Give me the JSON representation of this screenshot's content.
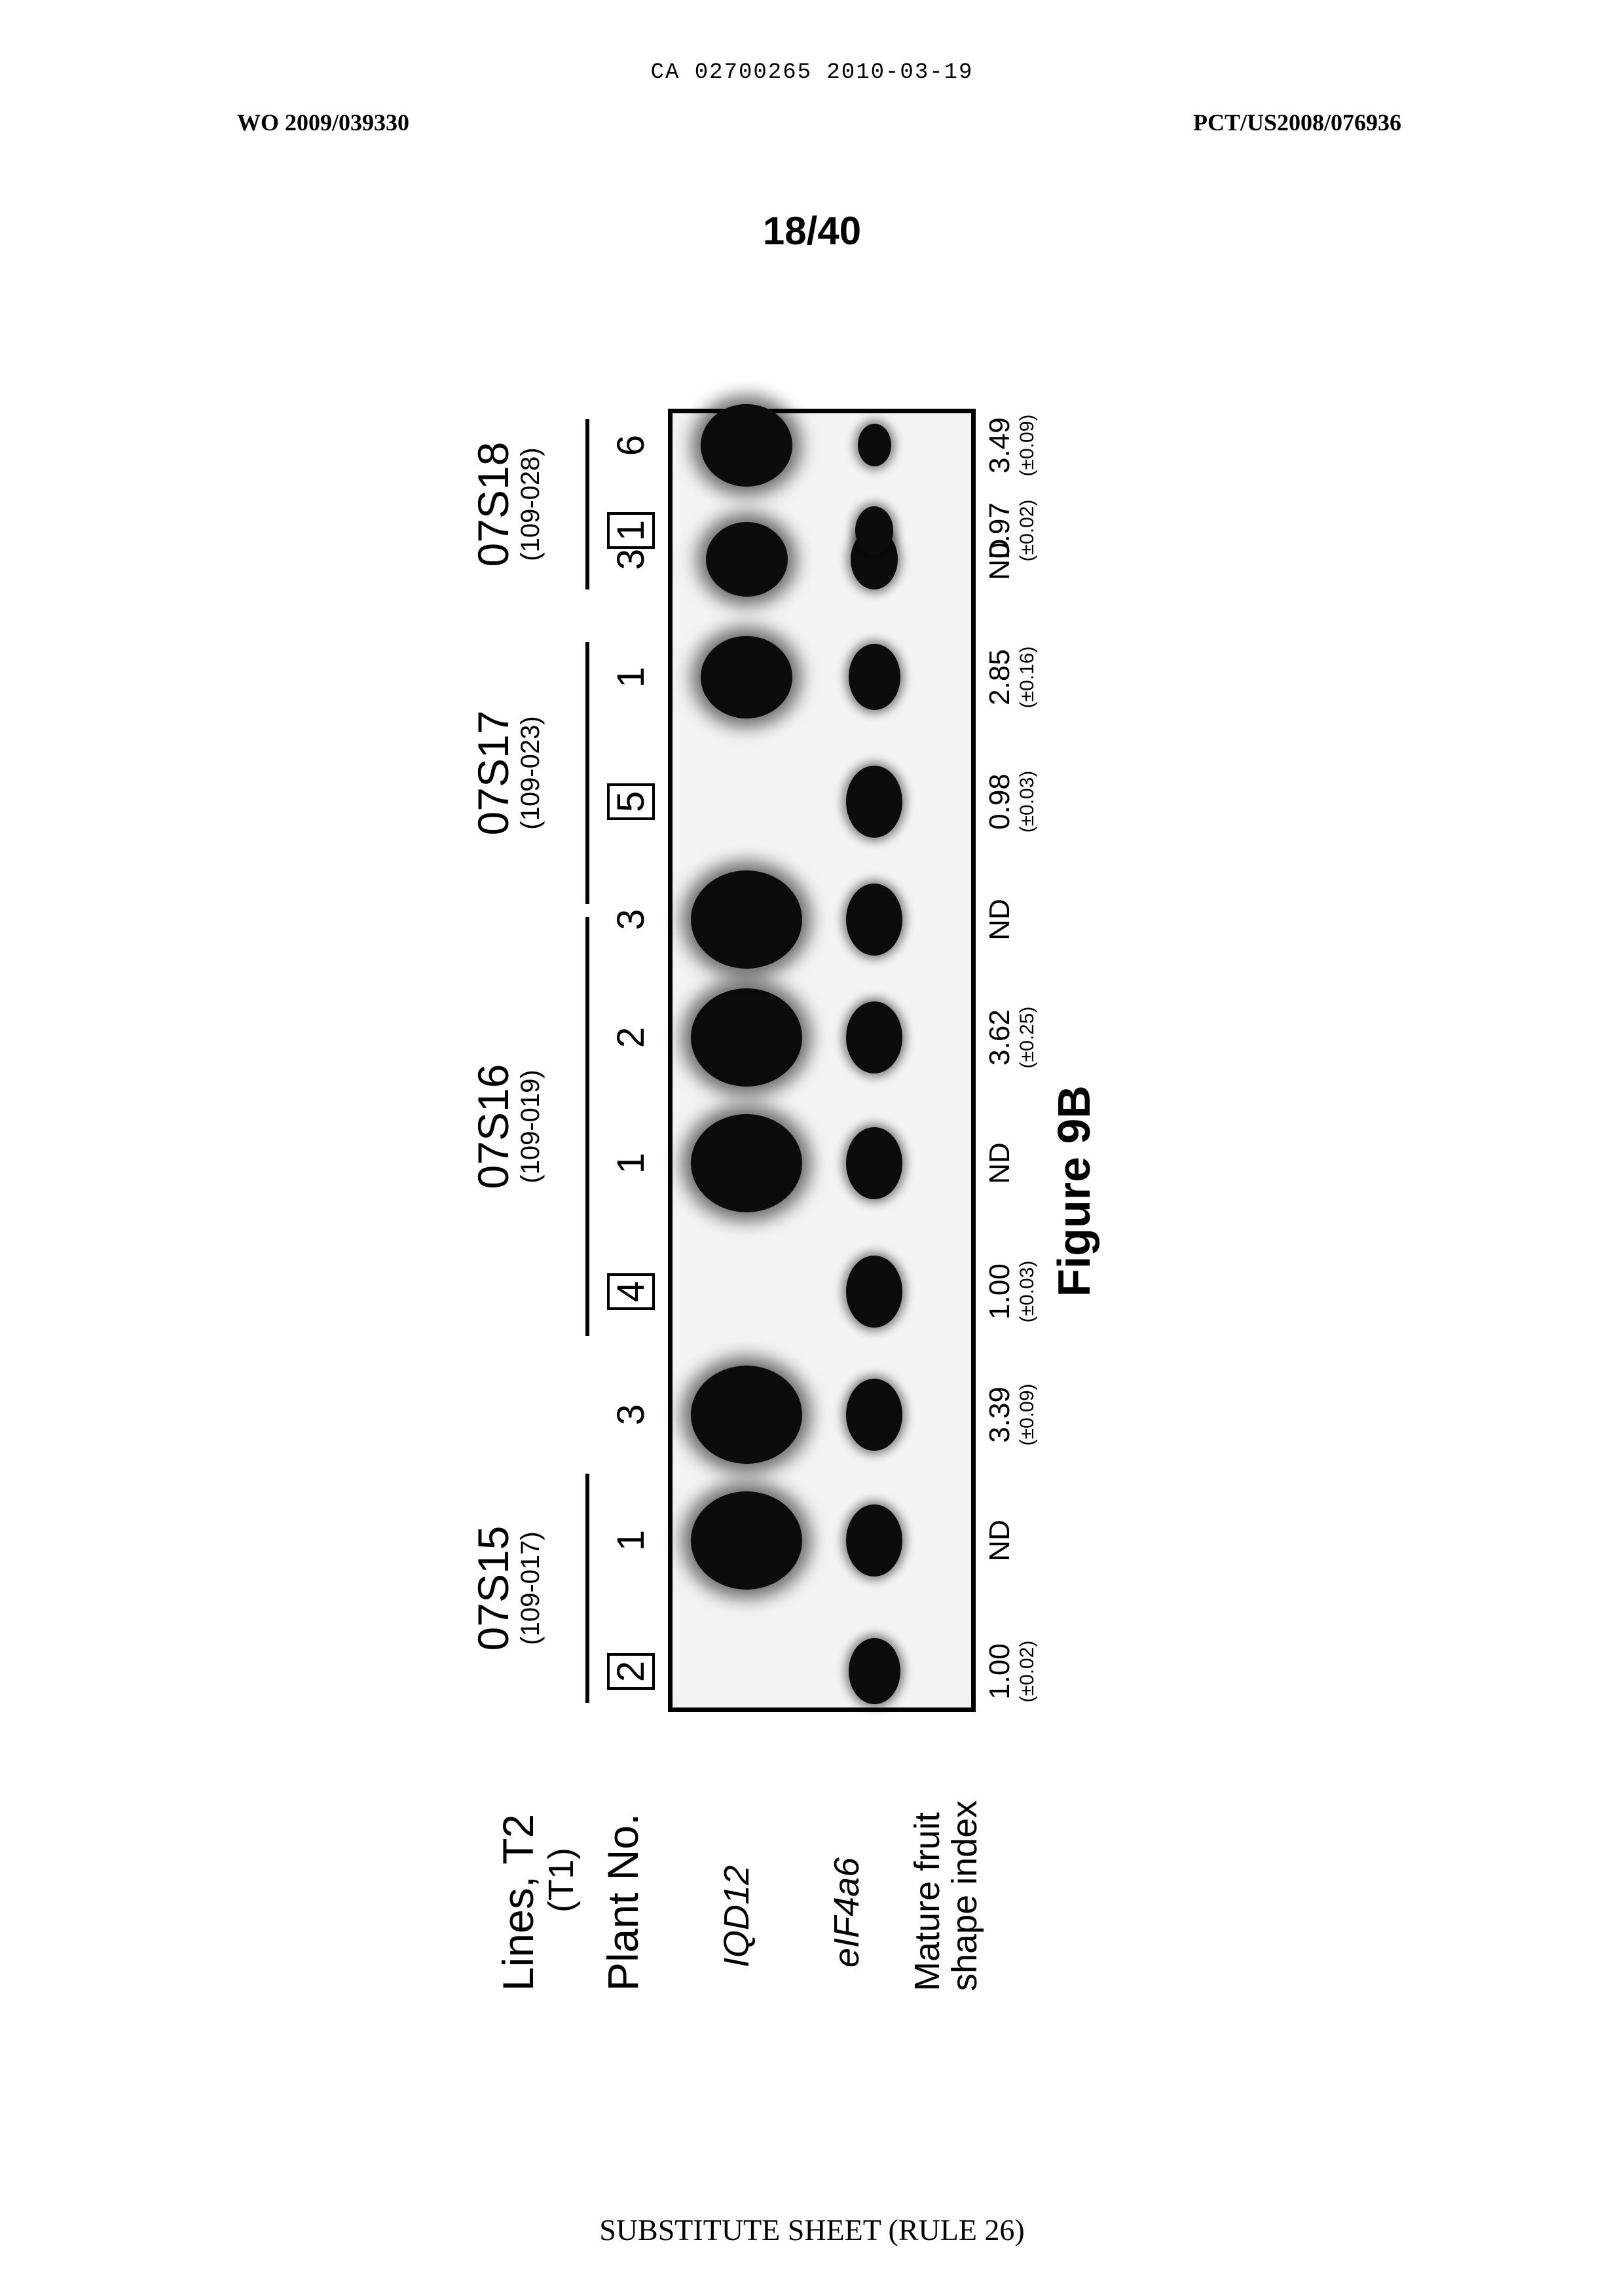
{
  "header": {
    "ca_line": "CA 02700265 2010-03-19",
    "wo_number": "WO 2009/039330",
    "pct_number": "PCT/US2008/076936",
    "sheet_number": "18/40"
  },
  "figure": {
    "row_labels": {
      "lines_t2": "Lines, T2",
      "t1": "(T1)",
      "plant_no": "Plant No.",
      "gene1": "IQD12",
      "gene2": "eIF4a6",
      "index_line1": "Mature fruit",
      "index_line2": "shape index"
    },
    "groups": [
      {
        "name": "07S15",
        "parent": "(109-017)"
      },
      {
        "name": "07S16",
        "parent": "(109-019)"
      },
      {
        "name": "07S17",
        "parent": "(109-023)"
      },
      {
        "name": "07S18",
        "parent": "(109-028)"
      }
    ],
    "lanes": [
      {
        "plant": "2",
        "boxed": true,
        "value": "1.00",
        "sd": "(±0.02)",
        "iqd12": 0.0,
        "eif4a6": 0.9
      },
      {
        "plant": "1",
        "boxed": false,
        "value": "ND",
        "sd": "",
        "iqd12": 1.0,
        "eif4a6": 1.0
      },
      {
        "plant": "3",
        "boxed": false,
        "value": "3.39",
        "sd": "(±0.09)",
        "iqd12": 1.0,
        "eif4a6": 1.0
      },
      {
        "plant": "4",
        "boxed": true,
        "value": "1.00",
        "sd": "(±0.03)",
        "iqd12": 0.0,
        "eif4a6": 1.0
      },
      {
        "plant": "1",
        "boxed": false,
        "value": "ND",
        "sd": "",
        "iqd12": 1.0,
        "eif4a6": 1.0
      },
      {
        "plant": "2",
        "boxed": false,
        "value": "3.62",
        "sd": "(±0.25)",
        "iqd12": 1.0,
        "eif4a6": 1.0
      },
      {
        "plant": "3",
        "boxed": false,
        "value": "ND",
        "sd": "",
        "iqd12": 1.0,
        "eif4a6": 1.0
      },
      {
        "plant": "5",
        "boxed": true,
        "value": "0.98",
        "sd": "(±0.03)",
        "iqd12": 0.0,
        "eif4a6": 1.0
      },
      {
        "plant": "1",
        "boxed": false,
        "value": "2.85",
        "sd": "(±0.16)",
        "iqd12": 0.8,
        "eif4a6": 0.9
      },
      {
        "plant": "3",
        "boxed": false,
        "value": "ND",
        "sd": "",
        "iqd12": 0.7,
        "eif4a6": 0.8
      },
      {
        "plant": "1",
        "boxed": true,
        "value": "0.97",
        "sd": "(±0.02)",
        "iqd12": 0.0,
        "eif4a6": 0.6
      },
      {
        "plant": "6",
        "boxed": false,
        "value": "3.49",
        "sd": "(±0.09)",
        "iqd12": 0.8,
        "eif4a6": 0.5
      }
    ],
    "caption": "Figure 9B"
  },
  "footer": "SUBSTITUTE SHEET (RULE 26)"
}
